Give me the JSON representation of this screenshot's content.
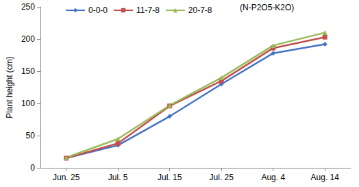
{
  "chart_data": {
    "type": "line",
    "y_label": "Plant height (cm)",
    "annotation": "(N-P2O5-K2O)",
    "categories": [
      "Jun. 25",
      "Jul. 5",
      "Jul. 15",
      "Jul. 25",
      "Aug. 4",
      "Aug. 14"
    ],
    "series": [
      {
        "name": "0-0-0",
        "color": "#4472c4",
        "marker": "diamond",
        "values": [
          15,
          35,
          80,
          130,
          178,
          192
        ]
      },
      {
        "name": "11-7-8",
        "color": "#c0504d",
        "marker": "square",
        "values": [
          15,
          38,
          96,
          135,
          186,
          203
        ]
      },
      {
        "name": "20-7-8",
        "color": "#9bbb59",
        "marker": "triangle",
        "values": [
          16,
          45,
          97,
          140,
          190,
          210
        ]
      }
    ],
    "ylim": [
      0,
      250
    ],
    "yticks": [
      0,
      50,
      100,
      150,
      200,
      250
    ],
    "grid": false,
    "legend": "upper left"
  }
}
